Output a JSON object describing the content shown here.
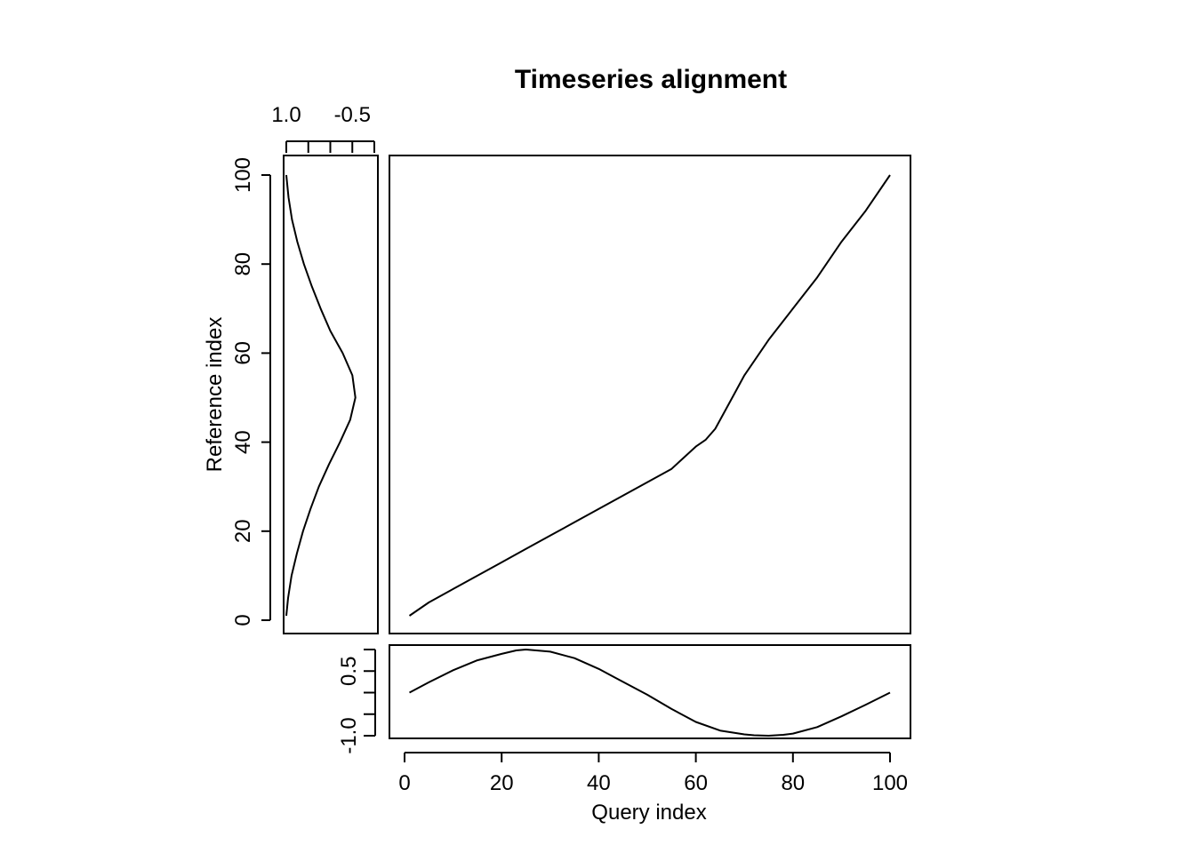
{
  "chart_data": {
    "type": "line",
    "title": "Timeseries alignment",
    "xlabel": "Query index",
    "ylabel": "Reference index",
    "grid": false,
    "panels": {
      "alignment": {
        "xlim": [
          0,
          100
        ],
        "ylim": [
          0,
          100
        ],
        "x_ticks": [
          0,
          20,
          40,
          60,
          80,
          100
        ],
        "x_tick_labels": [
          "0",
          "20",
          "40",
          "60",
          "80",
          "100"
        ],
        "y_ticks": [
          0,
          20,
          40,
          60,
          80,
          100
        ],
        "y_tick_labels": [
          "0",
          "20",
          "40",
          "60",
          "80",
          "100"
        ],
        "series": [
          {
            "x": [
              1,
              5,
              10,
              15,
              20,
              25,
              30,
              35,
              40,
              45,
              50,
              55,
              58,
              60,
              62,
              64,
              66,
              68,
              70,
              75,
              80,
              85,
              90,
              95,
              100
            ],
            "y": [
              1,
              4,
              7,
              10,
              13,
              16,
              19,
              22,
              25,
              28,
              31,
              34,
              37,
              39,
              40.5,
              43,
              47,
              51,
              55,
              63,
              70,
              77,
              85,
              92,
              100
            ]
          }
        ]
      },
      "query": {
        "xlim": [
          0,
          100
        ],
        "ylim": [
          -1,
          1
        ],
        "y_ticks": [
          -1,
          -0.5,
          0,
          0.5,
          1
        ],
        "y_tick_labels": [
          "-1.0",
          "",
          "",
          "0.5",
          ""
        ],
        "series": [
          {
            "x": [
              1,
              5,
              10,
              15,
              20,
              23,
              25,
              30,
              35,
              40,
              45,
              50,
              55,
              60,
              65,
              70,
              72,
              75,
              78,
              80,
              85,
              90,
              95,
              100
            ],
            "y": [
              0.0,
              0.24,
              0.52,
              0.75,
              0.9,
              0.98,
              1.0,
              0.95,
              0.8,
              0.55,
              0.25,
              -0.05,
              -0.38,
              -0.68,
              -0.88,
              -0.97,
              -0.99,
              -1.0,
              -0.98,
              -0.95,
              -0.8,
              -0.55,
              -0.28,
              0.0
            ]
          }
        ]
      },
      "reference": {
        "ylim": [
          0,
          100
        ],
        "xlim": [
          1.0,
          -1.0
        ],
        "x_ticks": [
          1.0,
          0.5,
          0.0,
          -0.5,
          -1.0
        ],
        "x_tick_labels": [
          "1.0",
          "",
          "",
          "-0.5",
          ""
        ],
        "series": [
          {
            "y": [
              1,
              5,
              10,
              15,
              20,
              25,
              30,
              35,
              40,
              45,
              50,
              55,
              60,
              65,
              70,
              75,
              80,
              85,
              90,
              95,
              100
            ],
            "x": [
              1.0,
              0.96,
              0.88,
              0.76,
              0.62,
              0.45,
              0.26,
              0.03,
              -0.22,
              -0.45,
              -0.57,
              -0.5,
              -0.28,
              0.0,
              0.22,
              0.42,
              0.6,
              0.75,
              0.87,
              0.95,
              1.0
            ]
          }
        ]
      }
    }
  }
}
